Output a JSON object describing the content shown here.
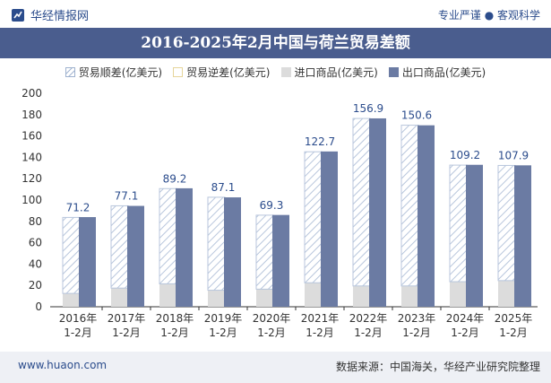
{
  "brand": "华经情报网",
  "slogan": "专业严谨 ● 客观科学",
  "title": "2016-2025年2月中国与荷兰贸易差额",
  "legend": [
    {
      "label": "贸易顺差(亿美元)",
      "kind": "surplus"
    },
    {
      "label": "贸易逆差(亿美元)",
      "kind": "deficit"
    },
    {
      "label": "进口商品(亿美元)",
      "kind": "import"
    },
    {
      "label": "出口商品(亿美元)",
      "kind": "export"
    }
  ],
  "footer": {
    "website": "www.huaon.com",
    "source": "数据来源：中国海关，华经产业研究院整理"
  },
  "colors": {
    "export": "#6b7ba3",
    "import": "#dcdcdc",
    "surplus_stripe": "#b8c6dc",
    "title_bg": "#4a5d8e",
    "label": "#2b4c8c"
  },
  "chart_data": {
    "type": "bar",
    "categories": [
      "2016年\n1-2月",
      "2017年\n1-2月",
      "2018年\n1-2月",
      "2019年\n1-2月",
      "2020年\n1-2月",
      "2021年\n1-2月",
      "2022年\n1-2月",
      "2023年\n1-2月",
      "2024年\n1-2月",
      "2025年\n1-2月"
    ],
    "series": [
      {
        "name": "贸易顺差(亿美元)",
        "values": [
          71.2,
          77.1,
          89.2,
          87.1,
          69.3,
          122.7,
          156.9,
          150.6,
          109.2,
          107.9
        ]
      },
      {
        "name": "贸易逆差(亿美元)",
        "values": [
          0,
          0,
          0,
          0,
          0,
          0,
          0,
          0,
          0,
          0
        ]
      },
      {
        "name": "进口商品(亿美元)",
        "values": [
          12.5,
          17.5,
          21.5,
          15.5,
          16.5,
          22.5,
          19.5,
          19.5,
          23.5,
          24.5
        ]
      },
      {
        "name": "出口商品(亿美元)",
        "values": [
          84,
          94.5,
          111,
          102.5,
          86,
          145.5,
          176.5,
          170,
          133,
          132.5
        ]
      }
    ],
    "data_labels": [
      "71.2",
      "77.1",
      "89.2",
      "87.1",
      "69.3",
      "122.7",
      "156.9",
      "150.6",
      "109.2",
      "107.9"
    ],
    "yticks": [
      "0",
      "20",
      "40",
      "60",
      "80",
      "100",
      "120",
      "140",
      "160",
      "180",
      "200"
    ],
    "ylim": [
      0,
      200
    ],
    "xlabel": "",
    "ylabel": ""
  }
}
